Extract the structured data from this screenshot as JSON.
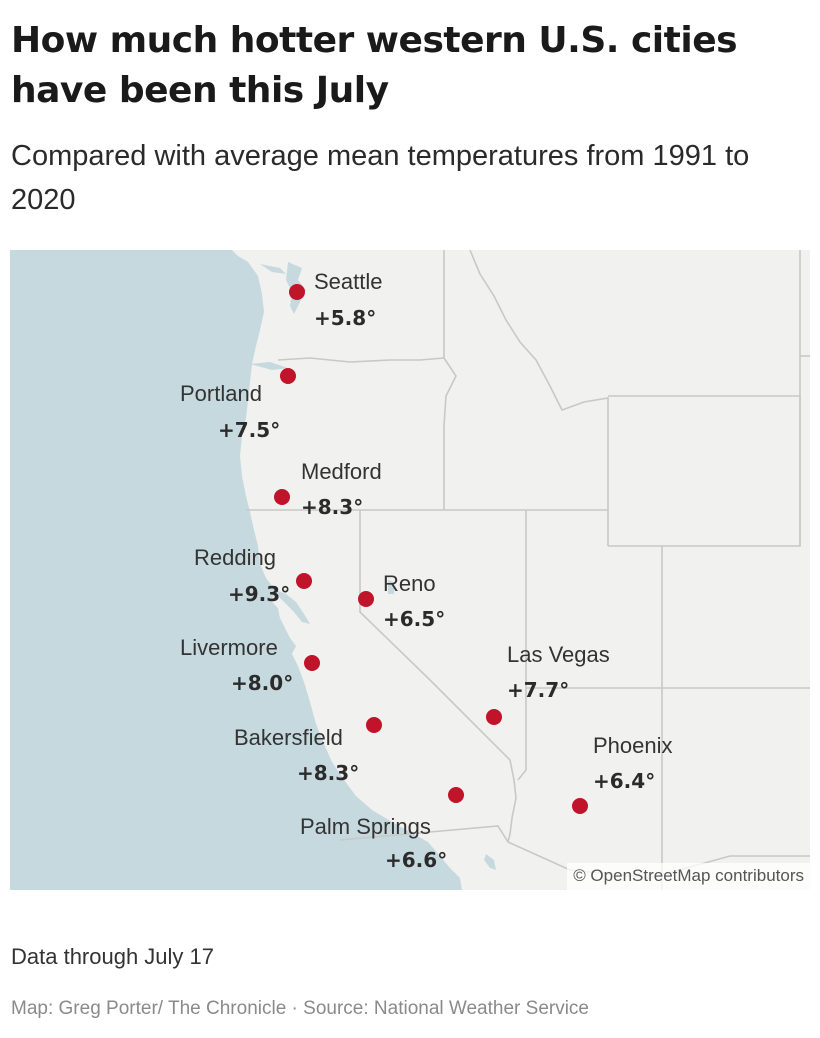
{
  "title": "How much hotter western U.S. cities have been this July",
  "subtitle": "Compared with average mean temperatures from 1991 to 2020",
  "map": {
    "attribution": "© OpenStreetMap contributors",
    "colors": {
      "water": "#c6d9df",
      "land": "#f1f1f0",
      "border": "#c8c8c8",
      "dot": "#c0142a"
    },
    "cities": [
      {
        "name": "Seattle",
        "value": "+5.8°"
      },
      {
        "name": "Portland",
        "value": "+7.5°"
      },
      {
        "name": "Medford",
        "value": "+8.3°"
      },
      {
        "name": "Redding",
        "value": "+9.3°"
      },
      {
        "name": "Reno",
        "value": "+6.5°"
      },
      {
        "name": "Livermore",
        "value": "+8.0°"
      },
      {
        "name": "Las Vegas",
        "value": "+7.7°"
      },
      {
        "name": "Bakersfield",
        "value": "+8.3°"
      },
      {
        "name": "Phoenix",
        "value": "+6.4°"
      },
      {
        "name": "Palm Springs",
        "value": "+6.6°"
      }
    ]
  },
  "note": "Data through July 17",
  "credit": "Map: Greg Porter/ The Chronicle · Source: National Weather Service"
}
